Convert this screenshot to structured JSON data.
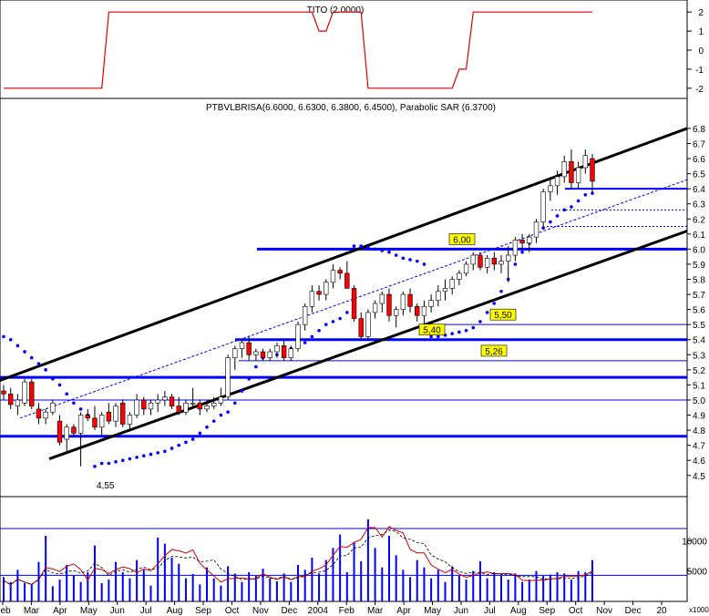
{
  "colors": {
    "background": "#ffffff",
    "frame": "#000000",
    "grid_h": "#000000",
    "tito_line": "#dd0000",
    "up_candle": "#ffffff",
    "down_candle": "#ff0000",
    "sar_dots": "#0000ff",
    "channel": "#000000",
    "support_lines": "#0000ff",
    "label_bg": "#ffff00",
    "volume_bars": "#0000ff",
    "osc_red": "#cc0000",
    "osc_black": "#000000"
  },
  "tito_panel": {
    "title": "TITO (2.0000)",
    "ticks": [
      "2",
      "1",
      "0",
      "-1",
      "-2"
    ],
    "tick_values": [
      2,
      1,
      0,
      -1,
      -2
    ],
    "ylim": [
      -2.2,
      2.2
    ]
  },
  "price_panel": {
    "title": "PTBVLBRISA(6.6000, 6.6300, 6.3800, 6.4500), Parabolic SAR (6.3700)",
    "ticks": [
      "6.8",
      "6.7",
      "6.6",
      "6.5",
      "6.4",
      "6.3",
      "6.2",
      "6.1",
      "6.0",
      "5.9",
      "5.8",
      "5.7",
      "5.6",
      "5.5",
      "5.4",
      "5.3",
      "5.2",
      "5.1",
      "5.0",
      "4.9",
      "4.8",
      "4.7",
      "4.6",
      "4.5"
    ],
    "ylim": [
      4.42,
      6.86
    ],
    "labels": [
      {
        "text": "6,00",
        "value": 6.0,
        "at": 495
      },
      {
        "text": "5,50",
        "value": 5.5,
        "at": 540
      },
      {
        "text": "5,40",
        "value": 5.4,
        "at": 462
      },
      {
        "text": "5,26",
        "value": 5.26,
        "at": 530
      }
    ],
    "low_annotation": {
      "text": "4,55",
      "value": 4.55,
      "at": 115
    }
  },
  "volume_panel": {
    "ticks": [
      "10000",
      "5000"
    ],
    "tick_values": [
      10000,
      5000
    ],
    "unit_label": "x1000"
  },
  "x_axis": {
    "labels": [
      "Feb",
      "Mar",
      "Apr",
      "May",
      "Jun",
      "Jul",
      "Aug",
      "Sep",
      "Oct",
      "Nov",
      "Dec",
      "2004",
      "Feb",
      "Mar",
      "Apr",
      "May",
      "Jun",
      "Jul",
      "Aug",
      "Sep",
      "Oct",
      "Nov",
      "Dec",
      "20"
    ]
  },
  "chart_data": {
    "type": "candlestick",
    "symbol": "PTBVLBRISA",
    "last_bar": {
      "open": 6.6,
      "high": 6.63,
      "low": 6.38,
      "close": 6.45
    },
    "parabolic_sar": 6.37,
    "tito_value": 2.0,
    "x_labels": [
      "Feb",
      "Mar",
      "Apr",
      "May",
      "Jun",
      "Jul",
      "Aug",
      "Sep",
      "Oct",
      "Nov",
      "Dec",
      "2004",
      "Feb",
      "Mar",
      "Apr",
      "May",
      "Jun",
      "Jul",
      "Aug",
      "Sep",
      "Oct",
      "Nov",
      "Dec",
      "20"
    ],
    "price_ylim": [
      4.42,
      6.86
    ],
    "horizontal_levels": [
      6.0,
      5.5,
      5.4,
      5.26,
      5.15,
      5.0,
      4.76,
      6.4,
      6.26,
      6.15
    ],
    "candles_weekly": [
      [
        5.06,
        5.1,
        5.0,
        5.04
      ],
      [
        5.04,
        5.08,
        4.94,
        4.97
      ],
      [
        4.96,
        5.04,
        4.9,
        5.0
      ],
      [
        4.98,
        5.14,
        4.96,
        5.12
      ],
      [
        5.12,
        5.14,
        4.94,
        4.96
      ],
      [
        4.94,
        4.98,
        4.84,
        4.88
      ],
      [
        4.88,
        4.94,
        4.84,
        4.92
      ],
      [
        4.92,
        5.0,
        4.9,
        4.98
      ],
      [
        4.86,
        4.9,
        4.7,
        4.72
      ],
      [
        4.74,
        4.84,
        4.66,
        4.82
      ],
      [
        4.82,
        4.84,
        4.76,
        4.78
      ],
      [
        4.78,
        4.92,
        4.56,
        4.9
      ],
      [
        4.9,
        4.94,
        4.86,
        4.88
      ],
      [
        4.88,
        4.96,
        4.8,
        4.82
      ],
      [
        4.82,
        4.92,
        4.76,
        4.9
      ],
      [
        4.92,
        4.98,
        4.84,
        4.86
      ],
      [
        4.86,
        4.98,
        4.82,
        4.96
      ],
      [
        4.98,
        5.0,
        4.82,
        4.84
      ],
      [
        4.84,
        4.92,
        4.8,
        4.9
      ],
      [
        4.9,
        5.04,
        4.88,
        5.0
      ],
      [
        5.0,
        5.02,
        4.9,
        4.94
      ],
      [
        4.94,
        5.0,
        4.9,
        4.98
      ],
      [
        4.98,
        5.04,
        4.92,
        5.0
      ],
      [
        5.0,
        5.06,
        4.96,
        5.02
      ],
      [
        5.02,
        5.04,
        4.94,
        4.96
      ],
      [
        4.96,
        5.02,
        4.9,
        4.92
      ],
      [
        4.92,
        5.0,
        4.9,
        4.98
      ],
      [
        4.98,
        5.08,
        4.96,
        4.98
      ],
      [
        4.98,
        5.0,
        4.9,
        4.94
      ],
      [
        4.94,
        5.0,
        4.92,
        4.96
      ],
      [
        4.96,
        5.02,
        4.94,
        4.98
      ],
      [
        4.98,
        5.08,
        4.96,
        5.02
      ],
      [
        5.02,
        5.3,
        5.0,
        5.28
      ],
      [
        5.28,
        5.36,
        5.2,
        5.34
      ],
      [
        5.34,
        5.4,
        5.28,
        5.38
      ],
      [
        5.38,
        5.42,
        5.26,
        5.3
      ],
      [
        5.3,
        5.34,
        5.26,
        5.32
      ],
      [
        5.32,
        5.34,
        5.26,
        5.28
      ],
      [
        5.28,
        5.34,
        5.26,
        5.32
      ],
      [
        5.32,
        5.38,
        5.28,
        5.36
      ],
      [
        5.36,
        5.4,
        5.26,
        5.28
      ],
      [
        5.28,
        5.36,
        5.26,
        5.34
      ],
      [
        5.34,
        5.52,
        5.32,
        5.5
      ],
      [
        5.5,
        5.64,
        5.46,
        5.62
      ],
      [
        5.62,
        5.76,
        5.58,
        5.72
      ],
      [
        5.72,
        5.76,
        5.66,
        5.7
      ],
      [
        5.7,
        5.8,
        5.66,
        5.78
      ],
      [
        5.78,
        5.9,
        5.74,
        5.86
      ],
      [
        5.86,
        5.88,
        5.8,
        5.84
      ],
      [
        5.84,
        5.92,
        5.76,
        5.74
      ],
      [
        5.74,
        5.76,
        5.52,
        5.54
      ],
      [
        5.54,
        5.58,
        5.4,
        5.42
      ],
      [
        5.42,
        5.6,
        5.4,
        5.58
      ],
      [
        5.58,
        5.66,
        5.54,
        5.64
      ],
      [
        5.64,
        5.72,
        5.58,
        5.7
      ],
      [
        5.7,
        5.74,
        5.52,
        5.56
      ],
      [
        5.56,
        5.62,
        5.48,
        5.6
      ],
      [
        5.6,
        5.72,
        5.56,
        5.7
      ],
      [
        5.7,
        5.74,
        5.58,
        5.62
      ],
      [
        5.62,
        5.64,
        5.52,
        5.56
      ],
      [
        5.56,
        5.66,
        5.5,
        5.62
      ],
      [
        5.62,
        5.7,
        5.58,
        5.66
      ],
      [
        5.66,
        5.76,
        5.62,
        5.72
      ],
      [
        5.72,
        5.8,
        5.66,
        5.74
      ],
      [
        5.74,
        5.82,
        5.7,
        5.8
      ],
      [
        5.8,
        5.86,
        5.76,
        5.84
      ],
      [
        5.84,
        5.92,
        5.82,
        5.9
      ],
      [
        5.9,
        5.98,
        5.86,
        5.96
      ],
      [
        5.96,
        5.98,
        5.86,
        5.88
      ],
      [
        5.88,
        5.96,
        5.84,
        5.94
      ],
      [
        5.94,
        5.98,
        5.86,
        5.9
      ],
      [
        5.9,
        5.96,
        5.84,
        5.92
      ],
      [
        5.92,
        6.02,
        5.78,
        5.96
      ],
      [
        5.96,
        6.08,
        5.92,
        6.06
      ],
      [
        6.06,
        6.1,
        6.0,
        6.04
      ],
      [
        6.04,
        6.1,
        5.98,
        6.08
      ],
      [
        6.08,
        6.2,
        6.04,
        6.18
      ],
      [
        6.18,
        6.4,
        6.14,
        6.38
      ],
      [
        6.38,
        6.46,
        6.32,
        6.42
      ],
      [
        6.42,
        6.52,
        6.36,
        6.48
      ],
      [
        6.48,
        6.62,
        6.44,
        6.58
      ],
      [
        6.58,
        6.66,
        6.4,
        6.44
      ],
      [
        6.44,
        6.58,
        6.4,
        6.54
      ],
      [
        6.54,
        6.66,
        6.5,
        6.62
      ],
      [
        6.6,
        6.63,
        6.38,
        6.45
      ]
    ],
    "sar_weekly": [
      5.42,
      5.4,
      5.36,
      5.32,
      5.28,
      5.24,
      5.2,
      5.14,
      5.1,
      5.04,
      4.98,
      4.94,
      4.9,
      4.56,
      4.58,
      4.58,
      4.59,
      4.6,
      4.61,
      4.62,
      4.63,
      4.64,
      4.65,
      4.66,
      4.68,
      4.7,
      4.72,
      4.74,
      4.78,
      4.82,
      4.86,
      4.9,
      4.92,
      4.98,
      5.06,
      5.14,
      5.22,
      5.28,
      5.3,
      5.3,
      5.32,
      5.34,
      5.36,
      5.38,
      5.42,
      5.46,
      5.5,
      5.52,
      5.54,
      5.58,
      6.02,
      6.02,
      6.01,
      6.0,
      5.99,
      5.98,
      5.96,
      5.94,
      5.93,
      5.92,
      5.9,
      5.42,
      5.42,
      5.43,
      5.44,
      5.45,
      5.46,
      5.48,
      5.52,
      5.58,
      5.64,
      5.72,
      5.8,
      5.9,
      5.98,
      6.04,
      6.1,
      6.14,
      6.18,
      6.22,
      6.26,
      6.28,
      6.32,
      6.36,
      6.37
    ],
    "tito_values": [
      -2,
      -2,
      -2,
      -2,
      -2,
      -2,
      -2,
      -2,
      -2,
      -2,
      -2,
      -2,
      -2,
      -2,
      -2,
      2,
      2,
      2,
      2,
      2,
      2,
      2,
      2,
      2,
      2,
      2,
      2,
      2,
      2,
      2,
      2,
      2,
      2,
      2,
      2,
      2,
      2,
      2,
      2,
      2,
      2,
      2,
      2,
      2,
      2,
      1,
      1,
      2,
      2,
      2,
      2,
      2,
      -2,
      -2,
      -2,
      -2,
      -2,
      -2,
      -2,
      -2,
      -2,
      -2,
      -2,
      -2,
      -2,
      -1,
      -1,
      2,
      2,
      2,
      2,
      2,
      2,
      2,
      2,
      2,
      2,
      2,
      2,
      2,
      2,
      2,
      2,
      2,
      2
    ],
    "volume_weekly": [
      4000,
      3200,
      5200,
      3000,
      2800,
      6500,
      10800,
      2500,
      3600,
      6000,
      4200,
      3200,
      4800,
      9200,
      3000,
      3600,
      6500,
      4800,
      3800,
      6800,
      5200,
      2600,
      10500,
      9500,
      7200,
      6200,
      3800,
      4500,
      2800,
      5600,
      3800,
      2600,
      5800,
      4600,
      3200,
      4800,
      4200,
      5400,
      3800,
      3300,
      4600,
      3200,
      6000,
      5200,
      7200,
      4600,
      6800,
      8800,
      11000,
      4800,
      9800,
      6600,
      13500,
      8800,
      5600,
      10800,
      7600,
      5200,
      4000,
      6800,
      5600,
      3800,
      5200,
      3200,
      5800,
      4200,
      3600,
      5000,
      6600,
      3800,
      4800,
      4200,
      3600,
      4600,
      3200,
      3600,
      5000,
      4200,
      4400,
      4800,
      4600,
      3600,
      5000,
      4800,
      6800
    ]
  }
}
